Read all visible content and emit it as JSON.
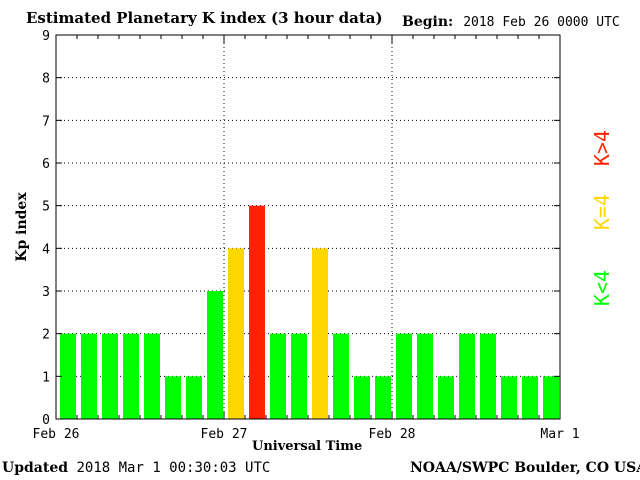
{
  "header": {
    "title": "Estimated Planetary K index (3 hour data)",
    "begin_label": "Begin:",
    "begin_value": "2018 Feb 26 0000 UTC"
  },
  "footer": {
    "updated_label": "Updated",
    "updated_value": "2018 Mar  1 00:30:03 UTC",
    "credit": "NOAA/SWPC Boulder, CO USA"
  },
  "legend": {
    "low": "K<4",
    "mid": "K=4",
    "high": "K>4"
  },
  "colors": {
    "low": "#00ff00",
    "mid": "#ffd700",
    "high": "#ff2200"
  },
  "chart_data": {
    "type": "bar",
    "title": "Estimated Planetary K index (3 hour data)",
    "xlabel": "Universal Time",
    "ylabel": "Kp index",
    "ylim": [
      0,
      9
    ],
    "yticks": [
      0,
      1,
      2,
      3,
      4,
      5,
      6,
      7,
      8,
      9
    ],
    "xticks": [
      "Feb 26",
      "Feb 27",
      "Feb 28",
      "Mar 1"
    ],
    "grid": true,
    "bar_interval": "3 hours",
    "values": [
      2,
      2,
      2,
      2,
      2,
      1,
      1,
      3,
      4,
      5,
      2,
      2,
      4,
      2,
      1,
      1,
      2,
      2,
      1,
      2,
      2,
      1,
      1,
      1
    ]
  }
}
